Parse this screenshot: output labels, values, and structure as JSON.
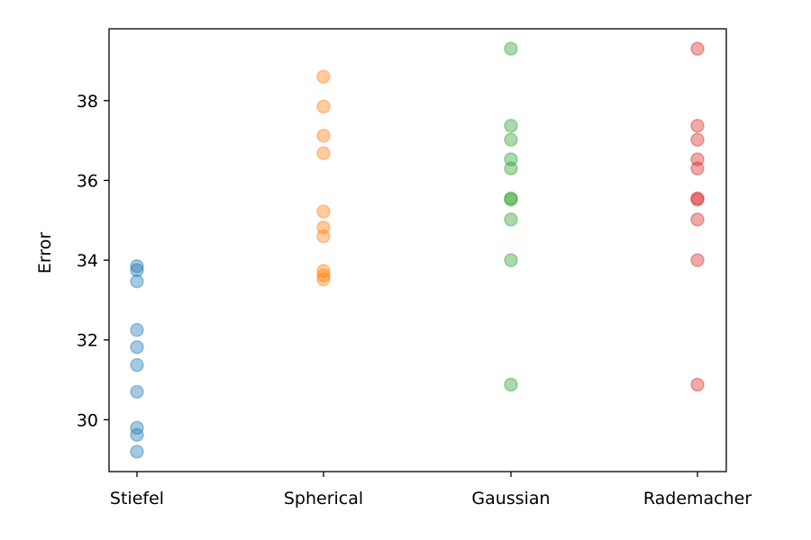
{
  "chart_data": {
    "type": "scatter",
    "title": "",
    "xlabel": "",
    "ylabel": "Error",
    "categories": [
      "Stiefel",
      "Spherical",
      "Gaussian",
      "Rademacher"
    ],
    "ylim": [
      28.7,
      39.8
    ],
    "yticks": [
      30,
      32,
      34,
      36,
      38
    ],
    "grid": false,
    "series": [
      {
        "category": "Stiefel",
        "color": "#1f77b4",
        "values": [
          33.85,
          33.75,
          33.47,
          32.25,
          31.82,
          31.37,
          30.7,
          29.8,
          29.62,
          29.2
        ]
      },
      {
        "category": "Spherical",
        "color": "#ff7f0e",
        "values": [
          38.6,
          37.85,
          37.12,
          36.68,
          35.22,
          34.82,
          34.6,
          33.73,
          33.62,
          33.52
        ]
      },
      {
        "category": "Gaussian",
        "color": "#2ca02c",
        "values": [
          39.3,
          37.37,
          37.02,
          36.53,
          36.3,
          35.55,
          35.52,
          35.02,
          34.0,
          30.88
        ]
      },
      {
        "category": "Rademacher",
        "color": "#d62728",
        "values": [
          39.3,
          37.37,
          37.02,
          36.53,
          36.3,
          35.55,
          35.52,
          35.02,
          34.0,
          30.88
        ]
      }
    ]
  }
}
